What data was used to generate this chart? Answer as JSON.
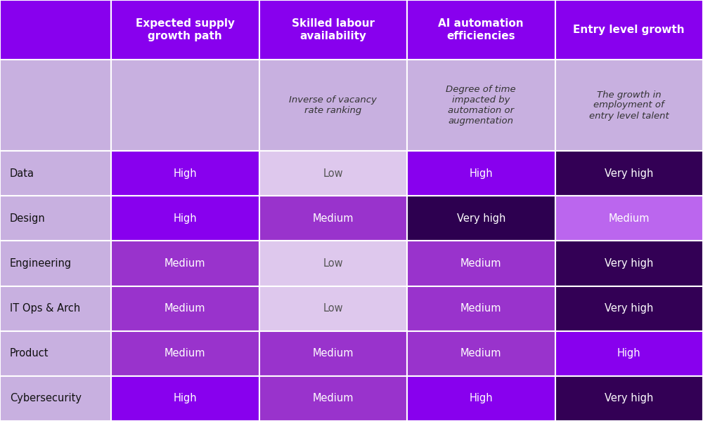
{
  "col_headers": [
    "Expected supply\ngrowth path",
    "Skilled labour\navailability",
    "AI automation\nefficiencies",
    "Entry level growth"
  ],
  "row_labels": [
    "Data",
    "Design",
    "Engineering",
    "IT Ops & Arch",
    "Product",
    "Cybersecurity"
  ],
  "desc_row": [
    "",
    "",
    "Inverse of vacancy\nrate ranking",
    "Degree of time\nimpacted by\nautomation or\naugmentation",
    "The growth in\nemployment of\nentry level talent"
  ],
  "table_data": [
    [
      "High",
      "Low",
      "High",
      "Very high"
    ],
    [
      "High",
      "Medium",
      "Very high",
      "Medium"
    ],
    [
      "Medium",
      "Low",
      "Medium",
      "Very high"
    ],
    [
      "Medium",
      "Low",
      "Medium",
      "Very high"
    ],
    [
      "Medium",
      "Medium",
      "Medium",
      "High"
    ],
    [
      "High",
      "Medium",
      "High",
      "Very high"
    ]
  ],
  "color_map": {
    "Low": "#DEC8ED",
    "Medium": "#9933CC",
    "High": "#8800EE",
    "Very high": "#330055"
  },
  "very_high_design": "#2D0050",
  "header_bg": "#8800EE",
  "header_text": "#FFFFFF",
  "desc_row_bg": "#C8B0E0",
  "row_label_bg": "#C8B0E0",
  "top_left_bg": "#8800EE",
  "background_color": "#FFFFFF",
  "cell_text_color": "#FFFFFF",
  "low_text_color": "#555555",
  "row_label_text_color": "#111111",
  "border_color": "#FFFFFF",
  "medium_entry": "#BB66EE"
}
